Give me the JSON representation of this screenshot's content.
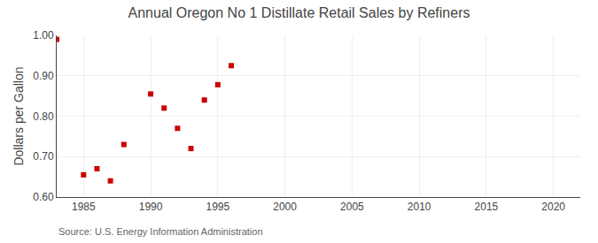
{
  "chart_data": {
    "type": "scatter",
    "title": "Annual Oregon No 1 Distillate Retail Sales by Refiners",
    "y_label": "Dollars per Gallon",
    "annotations": [
      "Source: U.S. Energy Information Administration"
    ],
    "x": [
      1983,
      1985,
      1986,
      1987,
      1988,
      1990,
      1991,
      1992,
      1993,
      1994,
      1995,
      1996
    ],
    "values": [
      0.99,
      0.655,
      0.67,
      0.64,
      0.73,
      0.855,
      0.82,
      0.77,
      0.72,
      0.84,
      0.878,
      0.925
    ],
    "color": "#cc0000",
    "marker": "square",
    "xlim": [
      1983,
      2022
    ],
    "xticks": [
      1985,
      1990,
      1995,
      2000,
      2005,
      2010,
      2015,
      2020
    ],
    "ylim": [
      0.6,
      1.0
    ],
    "yticks": [
      {
        "value": 0.6,
        "label": "0.60"
      },
      {
        "value": 0.7,
        "label": "0.70"
      },
      {
        "value": 0.8,
        "label": "0.80"
      },
      {
        "value": 0.9,
        "label": "0.90"
      },
      {
        "value": 1.0,
        "label": "1.00"
      }
    ],
    "grid": true
  }
}
